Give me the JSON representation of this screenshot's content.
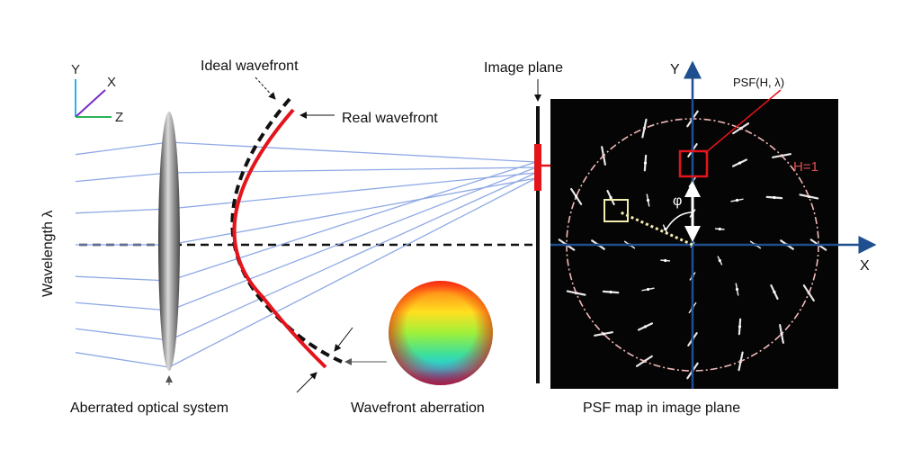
{
  "labels": {
    "ideal_wavefront": "Ideal wavefront",
    "real_wavefront": "Real wavefront",
    "image_plane": "Image plane",
    "wavelength": "Wavelength λ",
    "aberrated_system": "Aberrated optical system",
    "wavefront_aberration": "Wavefront aberration",
    "psf_map": "PSF map in image plane",
    "psf_label": "PSF(H, λ)",
    "h_label": "H=1",
    "phi": "φ"
  },
  "axes": {
    "left_y": "Y",
    "left_x": "X",
    "left_z": "Z",
    "map_y": "Y",
    "map_x": "X"
  },
  "colors": {
    "ray": "#8fa9e6",
    "wavefront_real": "#e3141b",
    "wavefront_ideal": "#111111",
    "map_bg": "#050505",
    "map_axis": "#1f4f8f",
    "h_circle": "#f2b8b8",
    "highlight": "#e3141b",
    "phi_line": "#f3ecb0"
  }
}
